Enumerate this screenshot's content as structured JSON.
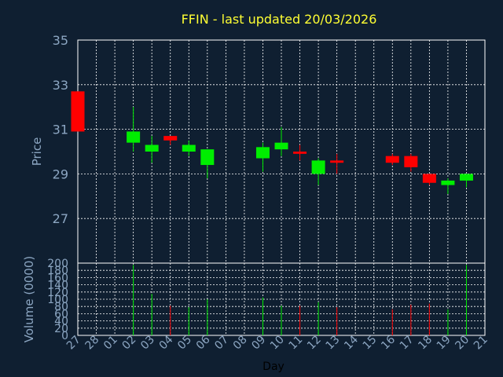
{
  "chart_data": [
    {
      "type": "candlestick",
      "title": "FFIN - last updated 20/03/2026",
      "ylabel": "Price",
      "ylim": [
        25,
        35
      ],
      "yticks": [
        27,
        29,
        31,
        33,
        35
      ],
      "grid": true,
      "up_color": "#00ee00",
      "down_color": "#ff0000",
      "candles": [
        {
          "day": "27",
          "open": 32.7,
          "high": 32.7,
          "low": 30.9,
          "close": 30.9
        },
        {
          "day": "02",
          "open": 30.4,
          "high": 32.0,
          "low": 30.0,
          "close": 30.9
        },
        {
          "day": "03",
          "open": 30.0,
          "high": 30.7,
          "low": 29.5,
          "close": 30.3
        },
        {
          "day": "04",
          "open": 30.7,
          "high": 30.7,
          "low": 30.3,
          "close": 30.5
        },
        {
          "day": "05",
          "open": 30.0,
          "high": 30.5,
          "low": 29.8,
          "close": 30.3
        },
        {
          "day": "06",
          "open": 29.4,
          "high": 30.1,
          "low": 28.8,
          "close": 30.1
        },
        {
          "day": "09",
          "open": 29.7,
          "high": 30.4,
          "low": 29.1,
          "close": 30.2
        },
        {
          "day": "10",
          "open": 30.1,
          "high": 31.1,
          "low": 29.8,
          "close": 30.4
        },
        {
          "day": "11",
          "open": 30.0,
          "high": 30.3,
          "low": 29.6,
          "close": 29.9
        },
        {
          "day": "12",
          "open": 29.0,
          "high": 29.7,
          "low": 28.5,
          "close": 29.6
        },
        {
          "day": "13",
          "open": 29.6,
          "high": 29.9,
          "low": 29.0,
          "close": 29.5
        },
        {
          "day": "16",
          "open": 29.8,
          "high": 29.9,
          "low": 29.4,
          "close": 29.5
        },
        {
          "day": "17",
          "open": 29.8,
          "high": 29.9,
          "low": 29.1,
          "close": 29.3
        },
        {
          "day": "18",
          "open": 29.0,
          "high": 29.0,
          "low": 28.5,
          "close": 28.6
        },
        {
          "day": "19",
          "open": 28.5,
          "high": 28.8,
          "low": 28.1,
          "close": 28.7
        },
        {
          "day": "20",
          "open": 28.7,
          "high": 29.0,
          "low": 28.4,
          "close": 29.0
        }
      ]
    },
    {
      "type": "bar",
      "xlabel": "Day",
      "ylabel": "Volume (0000)",
      "ylim": [
        0,
        200
      ],
      "yticks": [
        0,
        20,
        40,
        60,
        80,
        100,
        120,
        140,
        160,
        180,
        200
      ],
      "grid": true,
      "categories": [
        "27",
        "28",
        "01",
        "02",
        "03",
        "04",
        "05",
        "06",
        "07",
        "08",
        "09",
        "10",
        "11",
        "12",
        "13",
        "14",
        "15",
        "16",
        "17",
        "18",
        "19",
        "20",
        "21"
      ],
      "bars": [
        {
          "day": "02",
          "value": 195,
          "color": "#00ee00"
        },
        {
          "day": "03",
          "value": 115,
          "color": "#00ee00"
        },
        {
          "day": "04",
          "value": 82,
          "color": "#ff0000"
        },
        {
          "day": "05",
          "value": 78,
          "color": "#00ee00"
        },
        {
          "day": "06",
          "value": 100,
          "color": "#00ee00"
        },
        {
          "day": "09",
          "value": 105,
          "color": "#00ee00"
        },
        {
          "day": "10",
          "value": 82,
          "color": "#00ee00"
        },
        {
          "day": "11",
          "value": 82,
          "color": "#ff0000"
        },
        {
          "day": "12",
          "value": 92,
          "color": "#00ee00"
        },
        {
          "day": "13",
          "value": 78,
          "color": "#ff0000"
        },
        {
          "day": "16",
          "value": 72,
          "color": "#ff0000"
        },
        {
          "day": "17",
          "value": 85,
          "color": "#ff0000"
        },
        {
          "day": "18",
          "value": 88,
          "color": "#ff0000"
        },
        {
          "day": "19",
          "value": 72,
          "color": "#00ee00"
        },
        {
          "day": "20",
          "value": 195,
          "color": "#00ee00"
        }
      ]
    }
  ]
}
